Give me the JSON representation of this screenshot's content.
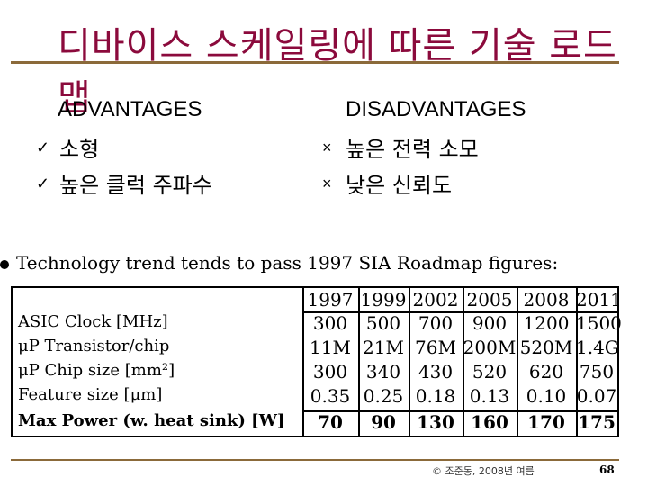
{
  "title": "디바이스 스케일링에 따른 기술 로드맵",
  "advantages": {
    "heading": "ADVANTAGES",
    "items": [
      "소형",
      "높은 클럭 주파수"
    ],
    "mark": "✓"
  },
  "disadvantages": {
    "heading": "DISADVANTAGES",
    "items": [
      "높은 전력 소모",
      "낮은 신뢰도"
    ],
    "mark": "×"
  },
  "bullet": "Technology trend tends to pass 1997 SIA Roadmap figures:",
  "table": {
    "years": [
      "1997",
      "1999",
      "2002",
      "2005",
      "2008",
      "2011"
    ],
    "rows": [
      {
        "label": "ASIC Clock [MHz]",
        "values": [
          "300",
          "500",
          "700",
          "900",
          "1200",
          "1500"
        ]
      },
      {
        "label": "μP Transistor/chip",
        "values": [
          "11M",
          "21M",
          "76M",
          "200M",
          "520M",
          "1.4G"
        ]
      },
      {
        "label": "μP Chip size [mm²]",
        "values": [
          "300",
          "340",
          "430",
          "520",
          "620",
          "750"
        ]
      },
      {
        "label": "Feature size [μm]",
        "values": [
          "0.35",
          "0.25",
          "0.18",
          "0.13",
          "0.10",
          "0.07"
        ]
      },
      {
        "label": "Max Power (w. heat sink) [W]",
        "values": [
          "70",
          "90",
          "130",
          "160",
          "170",
          "175"
        ]
      }
    ]
  },
  "footer": {
    "copyright": "© 조준동, 2008년 여름",
    "page": "68"
  }
}
